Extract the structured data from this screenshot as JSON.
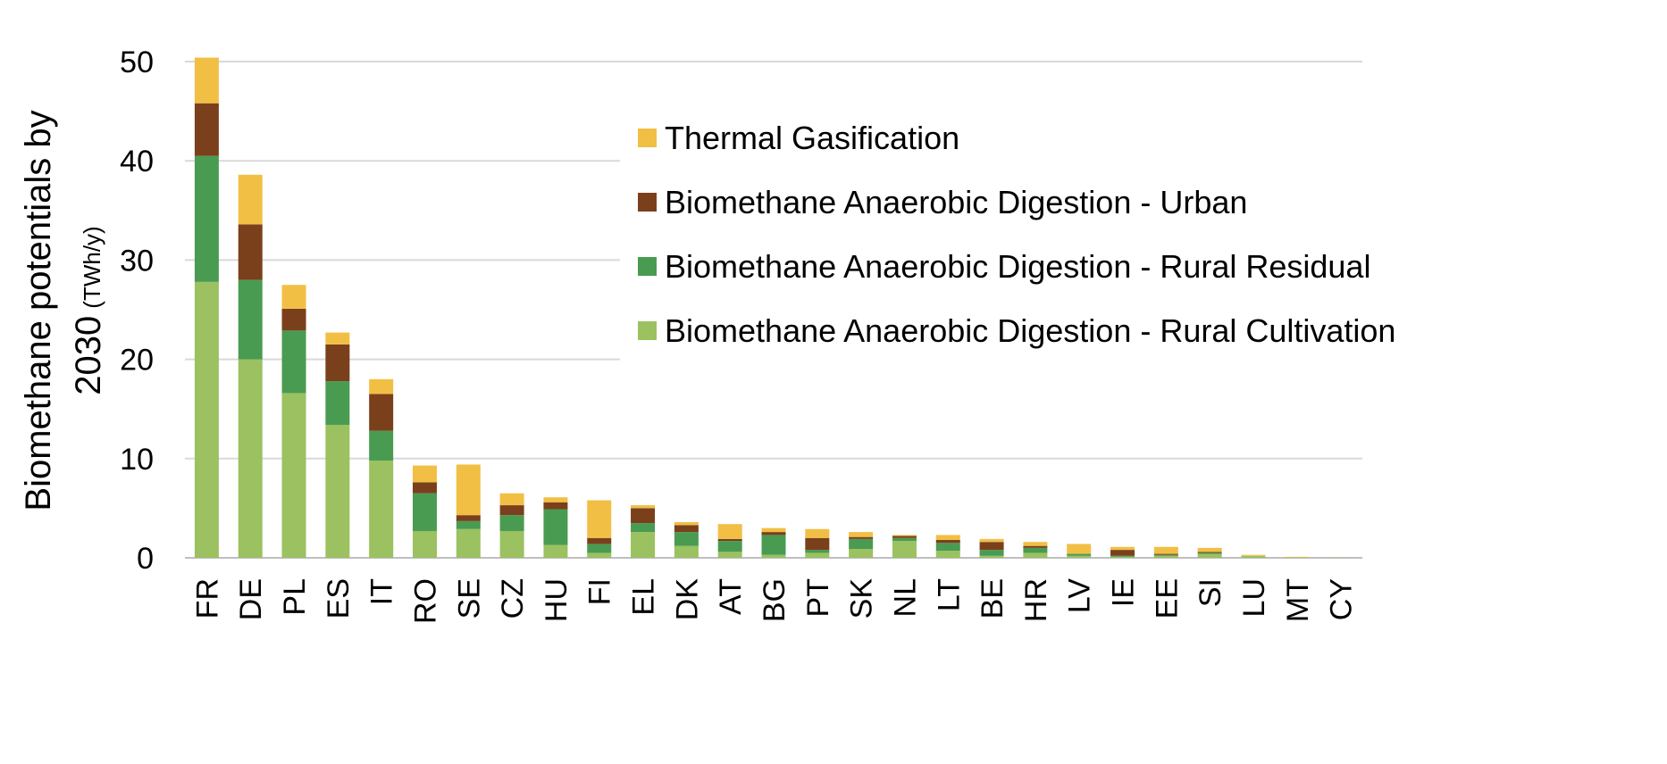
{
  "chart_data": {
    "type": "bar",
    "stacked": true,
    "categories": [
      "FR",
      "DE",
      "PL",
      "ES",
      "IT",
      "RO",
      "SE",
      "CZ",
      "HU",
      "FI",
      "EL",
      "DK",
      "AT",
      "BG",
      "PT",
      "SK",
      "NL",
      "LT",
      "BE",
      "HR",
      "LV",
      "IE",
      "EE",
      "SI",
      "LU",
      "MT",
      "CY"
    ],
    "series": [
      {
        "name": "Biomethane Anaerobic Digestion - Rural Cultivation",
        "color": "#9bc160",
        "values": [
          27.8,
          20.0,
          16.6,
          13.4,
          9.8,
          2.7,
          2.9,
          2.7,
          1.3,
          0.5,
          2.6,
          1.2,
          0.6,
          0.3,
          0.5,
          0.9,
          1.7,
          0.7,
          0.2,
          0.5,
          0.2,
          0.1,
          0.2,
          0.4,
          0.2,
          0.05,
          0.02
        ]
      },
      {
        "name": "Biomethane Anaerobic Digestion - Rural Residual",
        "color": "#4a9b52",
        "values": [
          12.7,
          8.0,
          6.3,
          4.4,
          3.0,
          3.8,
          0.8,
          1.6,
          3.6,
          0.9,
          0.9,
          1.4,
          1.1,
          2.0,
          0.3,
          1.0,
          0.3,
          0.8,
          0.6,
          0.5,
          0.2,
          0.1,
          0.1,
          0.1,
          0.0,
          0.0,
          0.0
        ]
      },
      {
        "name": "Biomethane Anaerobic Digestion - Urban",
        "color": "#7a401c",
        "values": [
          5.3,
          5.6,
          2.2,
          3.7,
          3.7,
          1.1,
          0.6,
          1.0,
          0.7,
          0.6,
          1.5,
          0.7,
          0.2,
          0.3,
          1.2,
          0.2,
          0.2,
          0.3,
          0.8,
          0.2,
          0.0,
          0.6,
          0.1,
          0.1,
          0.0,
          0.0,
          0.0
        ]
      },
      {
        "name": "Thermal Gasification",
        "color": "#f2bf45",
        "values": [
          4.6,
          5.0,
          2.4,
          1.2,
          1.5,
          1.7,
          5.1,
          1.2,
          0.5,
          3.8,
          0.3,
          0.3,
          1.5,
          0.4,
          0.9,
          0.5,
          0.1,
          0.5,
          0.3,
          0.4,
          1.0,
          0.3,
          0.7,
          0.4,
          0.1,
          0.05,
          0.0
        ]
      }
    ],
    "ylim": [
      0,
      50
    ],
    "yticks": [
      0,
      10,
      20,
      30,
      40,
      50
    ],
    "ylabel_line1": "Biomethane potentials by",
    "ylabel_line2": "2030",
    "ylabel_unit": "(TWh/y)",
    "xlabel": "",
    "title": "",
    "grid": true,
    "legend_position": "top-right"
  }
}
